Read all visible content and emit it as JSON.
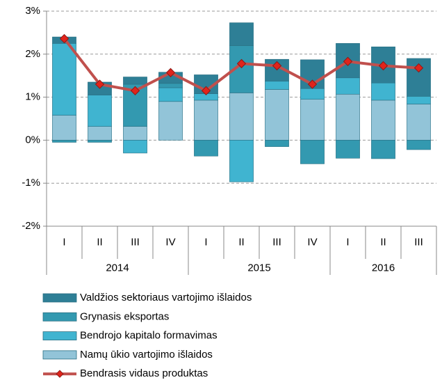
{
  "chart_data": {
    "type": "stacked-bar-line",
    "categories": [
      "I",
      "II",
      "III",
      "IV",
      "I",
      "II",
      "III",
      "IV",
      "I",
      "II",
      "III"
    ],
    "groups": [
      "2014",
      "2015",
      "2016"
    ],
    "ylim": [
      -2,
      3
    ],
    "yticks": [
      {
        "value": -2,
        "label": "-2%"
      },
      {
        "value": -1,
        "label": "-1%"
      },
      {
        "value": 0,
        "label": "0%"
      },
      {
        "value": 1,
        "label": "1%"
      },
      {
        "value": 2,
        "label": "2%"
      },
      {
        "value": 3,
        "label": "3%"
      }
    ],
    "grid": true,
    "series": [
      {
        "name": "Namų ūkio vartojimo išlaidos",
        "type": "bar",
        "color": "#92c4d8",
        "values": [
          0.58,
          0.32,
          0.32,
          0.9,
          0.93,
          1.1,
          1.18,
          0.95,
          1.07,
          0.93,
          0.84
        ]
      },
      {
        "name": "Bendrojo kapitalo formavimas",
        "type": "bar",
        "color": "#40b4d0",
        "values": [
          1.67,
          0.73,
          -0.3,
          0.32,
          0.15,
          -0.97,
          0.19,
          0.25,
          0.38,
          0.4,
          0.18
        ]
      },
      {
        "name": "Grynasis eksportas",
        "type": "bar",
        "color": "#3399b0",
        "values": [
          -0.05,
          -0.05,
          0.98,
          0.1,
          -0.37,
          1.1,
          -0.15,
          -0.55,
          -0.42,
          -0.43,
          -0.22
        ]
      },
      {
        "name": "Valdžios sektoriaus vartojimo išlaidos",
        "type": "bar",
        "color": "#2e7f96",
        "values": [
          0.15,
          0.3,
          0.17,
          0.26,
          0.44,
          0.53,
          0.51,
          0.67,
          0.8,
          0.84,
          0.88
        ]
      },
      {
        "name": "Bendrasis vidaus produktas",
        "type": "line",
        "color": "#c0504d",
        "values": [
          2.36,
          1.3,
          1.15,
          1.57,
          1.15,
          1.78,
          1.73,
          1.3,
          1.83,
          1.73,
          1.68
        ]
      }
    ]
  }
}
